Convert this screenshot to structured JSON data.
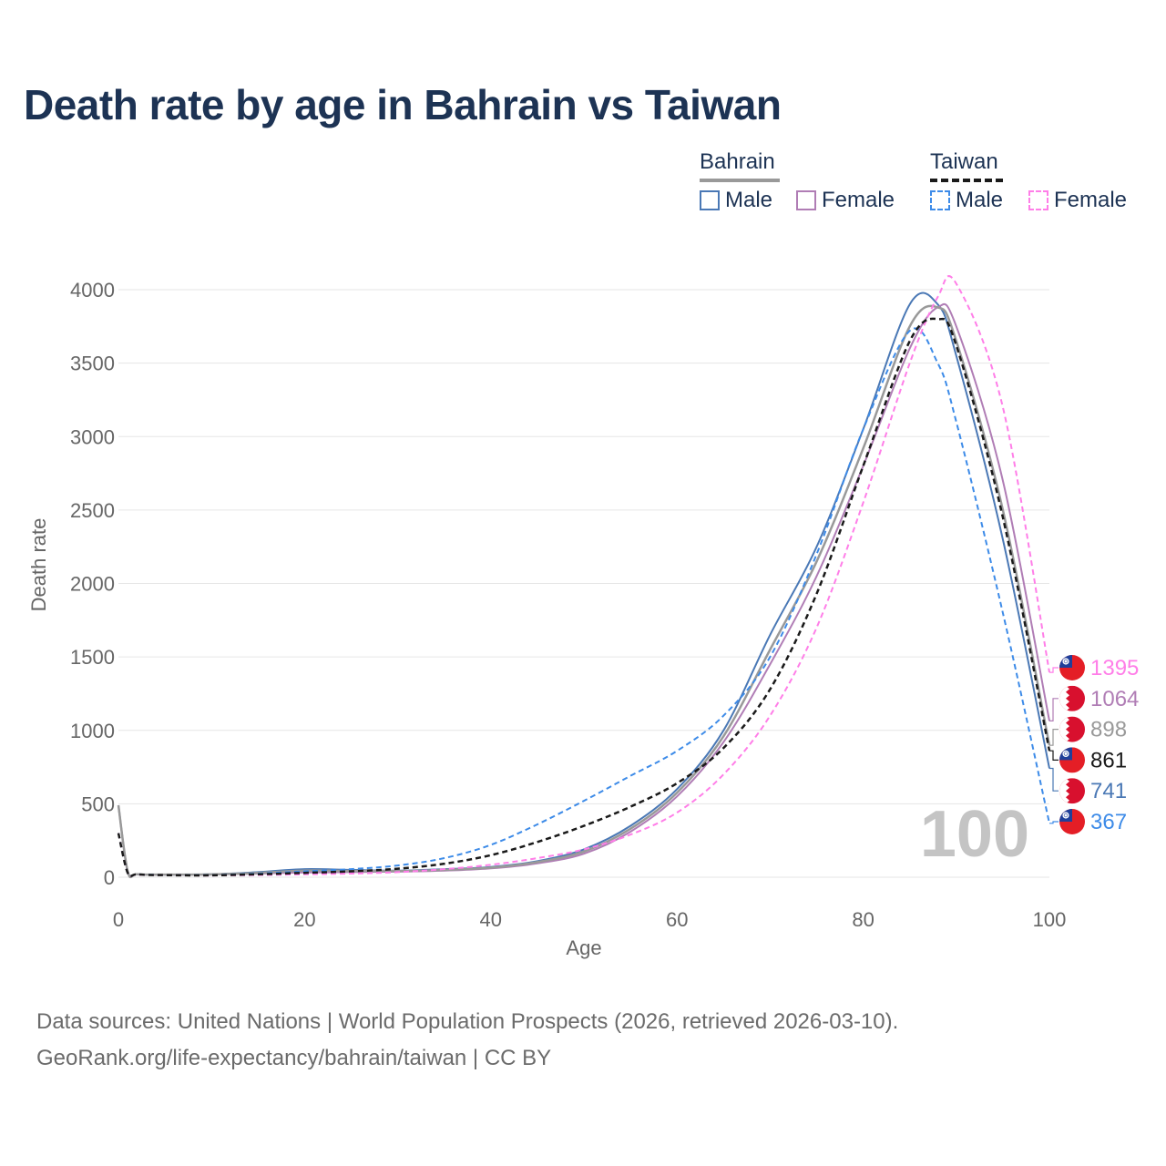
{
  "title": "Death rate by age in Bahrain vs Taiwan",
  "legend": {
    "groups": [
      {
        "name": "Bahrain",
        "items": [
          {
            "label": "Male"
          },
          {
            "label": "Female"
          }
        ]
      },
      {
        "name": "Taiwan",
        "items": [
          {
            "label": "Male"
          },
          {
            "label": "Female"
          }
        ]
      }
    ]
  },
  "colors": {
    "bahrain_male": "#4a78b5",
    "bahrain_female": "#b07db5",
    "bahrain_total": "#999999",
    "taiwan_male": "#3d8be8",
    "taiwan_female": "#ff7ee8",
    "taiwan_total": "#1a1a1a",
    "title": "#1d3354"
  },
  "chart_data": {
    "type": "line",
    "title": "Death rate by age in Bahrain vs Taiwan",
    "xlabel": "Age",
    "ylabel": "Death rate",
    "xlim": [
      0,
      100
    ],
    "ylim": [
      0,
      4000
    ],
    "x_ticks": [
      0,
      20,
      40,
      60,
      80,
      100
    ],
    "y_ticks": [
      0,
      500,
      1000,
      1500,
      2000,
      2500,
      3000,
      3500,
      4000
    ],
    "watermark": "100",
    "x": [
      0,
      1,
      2,
      5,
      10,
      15,
      20,
      25,
      30,
      35,
      40,
      45,
      50,
      55,
      60,
      65,
      70,
      75,
      80,
      85,
      88,
      90,
      95,
      100
    ],
    "series": [
      {
        "name": "Bahrain Male",
        "key": "bahrain_male",
        "dash": false,
        "end_label": "741",
        "flag": "bahrain",
        "values": [
          490,
          40,
          20,
          18,
          20,
          35,
          55,
          50,
          45,
          55,
          70,
          110,
          190,
          350,
          600,
          1000,
          1650,
          2250,
          3050,
          3900,
          3900,
          3550,
          2300,
          741
        ]
      },
      {
        "name": "Bahrain Female",
        "key": "bahrain_female",
        "dash": false,
        "end_label": "1064",
        "flag": "bahrain",
        "values": [
          490,
          40,
          20,
          18,
          18,
          25,
          32,
          35,
          38,
          45,
          60,
          95,
          160,
          310,
          550,
          920,
          1450,
          2050,
          2800,
          3600,
          3880,
          3750,
          2700,
          1064
        ]
      },
      {
        "name": "Bahrain Total",
        "key": "bahrain_total",
        "dash": false,
        "end_label": "898",
        "flag": "bahrain",
        "values": [
          490,
          40,
          20,
          18,
          19,
          30,
          45,
          43,
          42,
          50,
          65,
          103,
          175,
          330,
          575,
          960,
          1550,
          2150,
          2920,
          3750,
          3880,
          3650,
          2500,
          898
        ]
      },
      {
        "name": "Taiwan Male",
        "key": "taiwan_male",
        "dash": true,
        "end_label": "367",
        "flag": "taiwan",
        "values": [
          300,
          30,
          20,
          15,
          15,
          25,
          40,
          55,
          80,
          130,
          220,
          360,
          520,
          690,
          860,
          1100,
          1500,
          2200,
          3050,
          3720,
          3500,
          3100,
          1800,
          367
        ]
      },
      {
        "name": "Taiwan Female",
        "key": "taiwan_female",
        "dash": true,
        "end_label": "1395",
        "flag": "taiwan",
        "values": [
          300,
          30,
          18,
          14,
          12,
          15,
          20,
          25,
          35,
          55,
          85,
          130,
          190,
          290,
          440,
          700,
          1100,
          1700,
          2550,
          3500,
          3950,
          4040,
          3200,
          1395
        ]
      },
      {
        "name": "Taiwan Total",
        "key": "taiwan_total",
        "dash": true,
        "end_label": "861",
        "flag": "taiwan",
        "values": [
          300,
          30,
          19,
          14,
          13,
          20,
          30,
          40,
          58,
          92,
          150,
          240,
          350,
          480,
          640,
          880,
          1280,
          1930,
          2800,
          3650,
          3800,
          3620,
          2450,
          861
        ]
      }
    ]
  },
  "source": {
    "line1": "Data sources: United Nations | World Population Prospects (2026, retrieved 2026-03-10).",
    "line2": "GeoRank.org/life-expectancy/bahrain/taiwan | CC BY"
  }
}
